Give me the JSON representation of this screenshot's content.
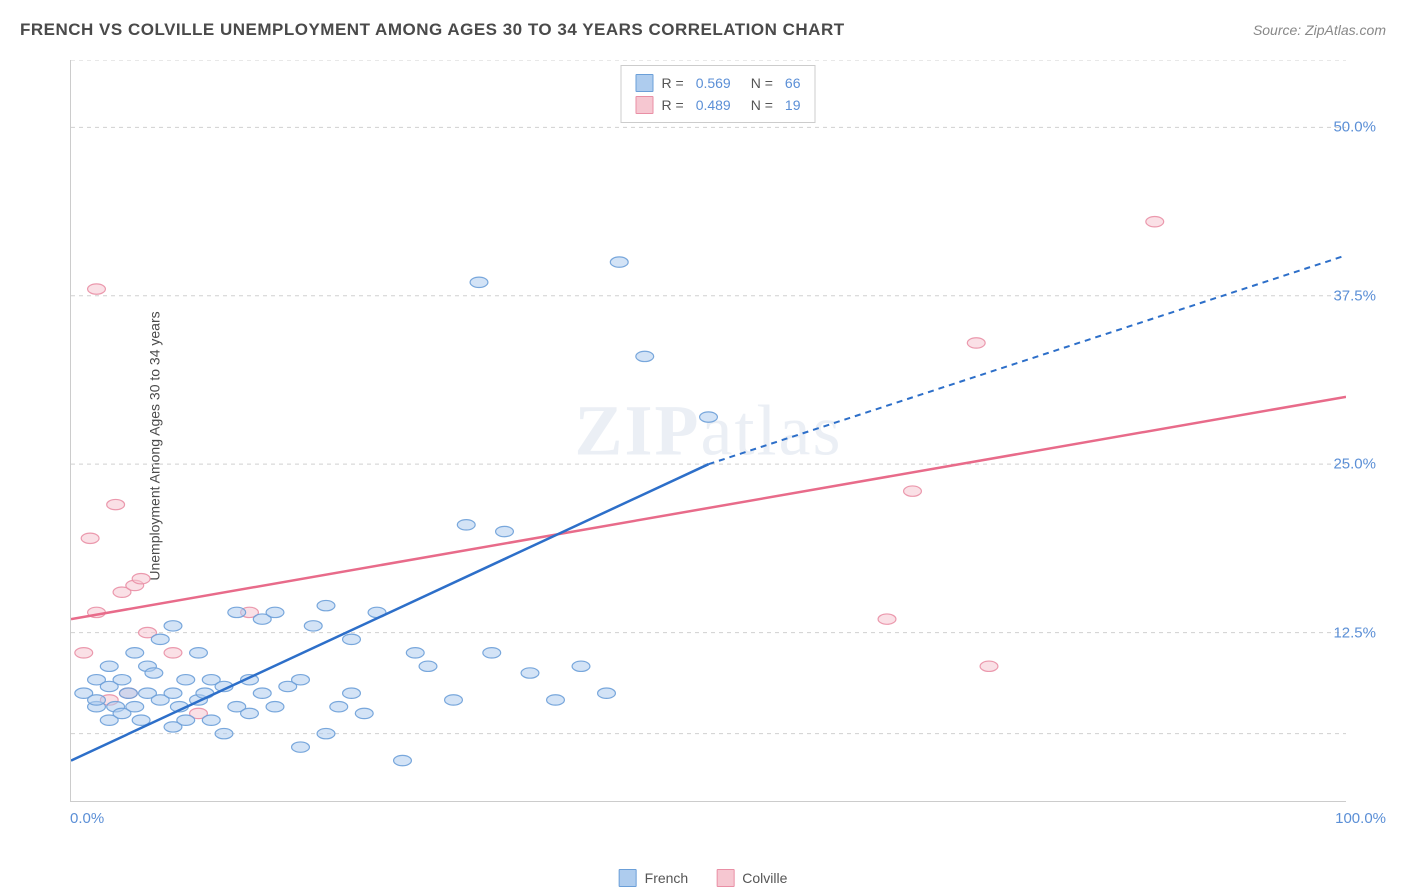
{
  "header": {
    "title": "FRENCH VS COLVILLE UNEMPLOYMENT AMONG AGES 30 TO 34 YEARS CORRELATION CHART",
    "source": "Source: ZipAtlas.com"
  },
  "watermark": {
    "part1": "ZIP",
    "part2": "atlas"
  },
  "chart": {
    "type": "scatter",
    "ylabel": "Unemployment Among Ages 30 to 34 years",
    "background_color": "#ffffff",
    "grid_color": "#d0d0d0",
    "axis_color": "#cccccc",
    "tick_label_color": "#5b8fd6",
    "xlim": [
      0,
      100
    ],
    "ylim": [
      0,
      55
    ],
    "xtick_positions": [
      0,
      10,
      20,
      30,
      40,
      50,
      60,
      70,
      80,
      90,
      100
    ],
    "xtick_labels": {
      "0": "0.0%",
      "100": "100.0%"
    },
    "ytick_values": [
      12.5,
      25.0,
      37.5,
      50.0
    ],
    "ytick_labels": [
      "12.5%",
      "25.0%",
      "37.5%",
      "50.0%"
    ],
    "ytick_grid_at": [
      5,
      12.5,
      25.0,
      37.5,
      50.0,
      55
    ],
    "marker_radius": 7,
    "marker_opacity": 0.55,
    "marker_stroke_opacity": 0.9,
    "line_width_solid": 2.5,
    "line_width_dash": 2,
    "dash_pattern": "6 5",
    "series": {
      "french": {
        "label": "French",
        "fill_color": "#aeccee",
        "stroke_color": "#6b9fd8",
        "line_color": "#2d6fc9",
        "R": "0.569",
        "N": "66",
        "points": [
          [
            1,
            8
          ],
          [
            2,
            7
          ],
          [
            2,
            9
          ],
          [
            2,
            7.5
          ],
          [
            3,
            6
          ],
          [
            3,
            8.5
          ],
          [
            3,
            10
          ],
          [
            3.5,
            7
          ],
          [
            4,
            6.5
          ],
          [
            4,
            9
          ],
          [
            4.5,
            8
          ],
          [
            5,
            7
          ],
          [
            5,
            11
          ],
          [
            5.5,
            6
          ],
          [
            6,
            10
          ],
          [
            6,
            8
          ],
          [
            6.5,
            9.5
          ],
          [
            7,
            7.5
          ],
          [
            7,
            12
          ],
          [
            8,
            5.5
          ],
          [
            8,
            8
          ],
          [
            8,
            13
          ],
          [
            8.5,
            7
          ],
          [
            9,
            9
          ],
          [
            9,
            6
          ],
          [
            10,
            7.5
          ],
          [
            10,
            11
          ],
          [
            10.5,
            8
          ],
          [
            11,
            6
          ],
          [
            11,
            9
          ],
          [
            12,
            8.5
          ],
          [
            12,
            5
          ],
          [
            13,
            7
          ],
          [
            13,
            14
          ],
          [
            14,
            9
          ],
          [
            14,
            6.5
          ],
          [
            15,
            8
          ],
          [
            15,
            13.5
          ],
          [
            16,
            7
          ],
          [
            16,
            14
          ],
          [
            17,
            8.5
          ],
          [
            18,
            9
          ],
          [
            18,
            4
          ],
          [
            19,
            13
          ],
          [
            20,
            5
          ],
          [
            20,
            14.5
          ],
          [
            21,
            7
          ],
          [
            22,
            8
          ],
          [
            22,
            12
          ],
          [
            23,
            6.5
          ],
          [
            24,
            14
          ],
          [
            26,
            3
          ],
          [
            27,
            11
          ],
          [
            28,
            10
          ],
          [
            30,
            7.5
          ],
          [
            31,
            20.5
          ],
          [
            32,
            38.5
          ],
          [
            33,
            11
          ],
          [
            34,
            20
          ],
          [
            36,
            9.5
          ],
          [
            38,
            7.5
          ],
          [
            40,
            10
          ],
          [
            42,
            8
          ],
          [
            43,
            40
          ],
          [
            45,
            33
          ],
          [
            50,
            28.5
          ]
        ],
        "trend_solid": {
          "x1": 0,
          "y1": 3.0,
          "x2": 50,
          "y2": 25.0
        },
        "trend_dash": {
          "x1": 50,
          "y1": 25.0,
          "x2": 100,
          "y2": 40.5
        }
      },
      "colville": {
        "label": "Colville",
        "fill_color": "#f6c7d1",
        "stroke_color": "#e98fa5",
        "line_color": "#e86b8a",
        "R": "0.489",
        "N": "19",
        "points": [
          [
            1,
            11
          ],
          [
            1.5,
            19.5
          ],
          [
            2,
            14
          ],
          [
            2,
            38
          ],
          [
            3,
            7.5
          ],
          [
            3.5,
            22
          ],
          [
            4,
            15.5
          ],
          [
            4.5,
            8
          ],
          [
            5,
            16
          ],
          [
            5.5,
            16.5
          ],
          [
            6,
            12.5
          ],
          [
            8,
            11
          ],
          [
            10,
            6.5
          ],
          [
            14,
            14
          ],
          [
            64,
            13.5
          ],
          [
            66,
            23
          ],
          [
            71,
            34
          ],
          [
            72,
            10
          ],
          [
            85,
            43
          ]
        ],
        "trend_solid": {
          "x1": 0,
          "y1": 13.5,
          "x2": 100,
          "y2": 30.0
        }
      }
    }
  },
  "legend_top": {
    "rows": [
      {
        "series": "french",
        "r_label": "R =",
        "n_label": "N ="
      },
      {
        "series": "colville",
        "r_label": "R =",
        "n_label": "N ="
      }
    ]
  },
  "legend_bottom": {
    "items": [
      {
        "series": "french"
      },
      {
        "series": "colville"
      }
    ]
  }
}
